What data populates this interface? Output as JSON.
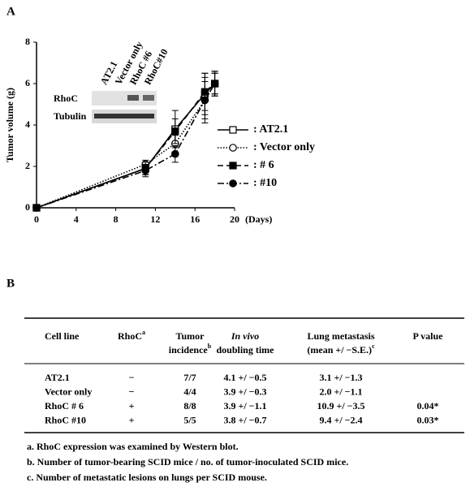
{
  "panel_labels": [
    "A",
    "B"
  ],
  "chart_data": {
    "type": "line",
    "y_label": "Tumor volume (g)",
    "x_label": "(Days)",
    "x": [
      0,
      11,
      14,
      17,
      18
    ],
    "xlim": [
      0,
      20
    ],
    "xticks": [
      0,
      4,
      8,
      12,
      16,
      20
    ],
    "ylim": [
      0,
      8
    ],
    "yticks": [
      0,
      2,
      4,
      6,
      8
    ],
    "series": [
      {
        "name": ": AT2.1",
        "color": "#000000",
        "dash": "solid",
        "marker": "square-open",
        "values": [
          0,
          1.9,
          3.8,
          5.5,
          6.0
        ],
        "errors": [
          0,
          0.3,
          0.9,
          1.0,
          0.6
        ]
      },
      {
        "name": ": Vector only",
        "color": "#000000",
        "dash": "dotted",
        "marker": "circle-open",
        "values": [
          0,
          2.1,
          3.1,
          5.2,
          6.0
        ],
        "errors": [
          0,
          0.2,
          0.4,
          0.9,
          0.5
        ]
      },
      {
        "name": ": # 6",
        "color": "#000000",
        "dash": "dashed",
        "marker": "square-filled",
        "values": [
          0,
          1.9,
          3.7,
          5.6,
          6.0
        ],
        "errors": [
          0,
          0.3,
          0.6,
          0.9,
          0.5
        ]
      },
      {
        "name": ": #10",
        "color": "#000000",
        "dash": "dashdot",
        "marker": "circle-filled",
        "values": [
          0,
          1.8,
          2.6,
          5.2,
          6.0
        ],
        "errors": [
          0,
          0.3,
          0.4,
          1.1,
          0.6
        ]
      }
    ]
  },
  "inset": {
    "lane_labels": [
      "AT2.1",
      "Vector only",
      "RhoC #6",
      "RhoC#10"
    ],
    "row_labels": [
      "RhoC",
      "Tubulin"
    ]
  },
  "table": {
    "header": [
      {
        "lines": [
          "Cell line"
        ]
      },
      {
        "lines": [
          "RhoC"
        ],
        "sup": "a"
      },
      {
        "lines": [
          "Tumor",
          "incidence"
        ],
        "sup": "b"
      },
      {
        "lines": [
          "In vivo",
          "doubling time"
        ]
      },
      {
        "lines": [
          "Lung metastasis",
          "(mean +/ −S.E.)"
        ],
        "sup": "c"
      },
      {
        "lines": [
          "P value"
        ]
      }
    ],
    "rows": [
      [
        "AT2.1",
        "−",
        "7/7",
        "4.1 +/ −0.5",
        "3.1 +/ −1.3",
        null
      ],
      [
        "Vector only",
        "−",
        "4/4",
        "3.9 +/ −0.3",
        "2.0 +/ −1.1",
        null
      ],
      [
        "RhoC # 6",
        "+",
        "8/8",
        "3.9 +/ −1.1",
        "10.9 +/ −3.5",
        "0.04*"
      ],
      [
        "RhoC #10",
        "+",
        "5/5",
        "3.8 +/ −0.7",
        "9.4 +/ −2.4",
        "0.03*"
      ]
    ]
  },
  "footnotes": [
    "a. RhoC expression was examined by Western blot.",
    "b. Number of tumor-bearing SCID mice / no. of tumor-inoculated SCID mice.",
    "c. Number of metastatic lesions on lungs per SCID mouse."
  ]
}
